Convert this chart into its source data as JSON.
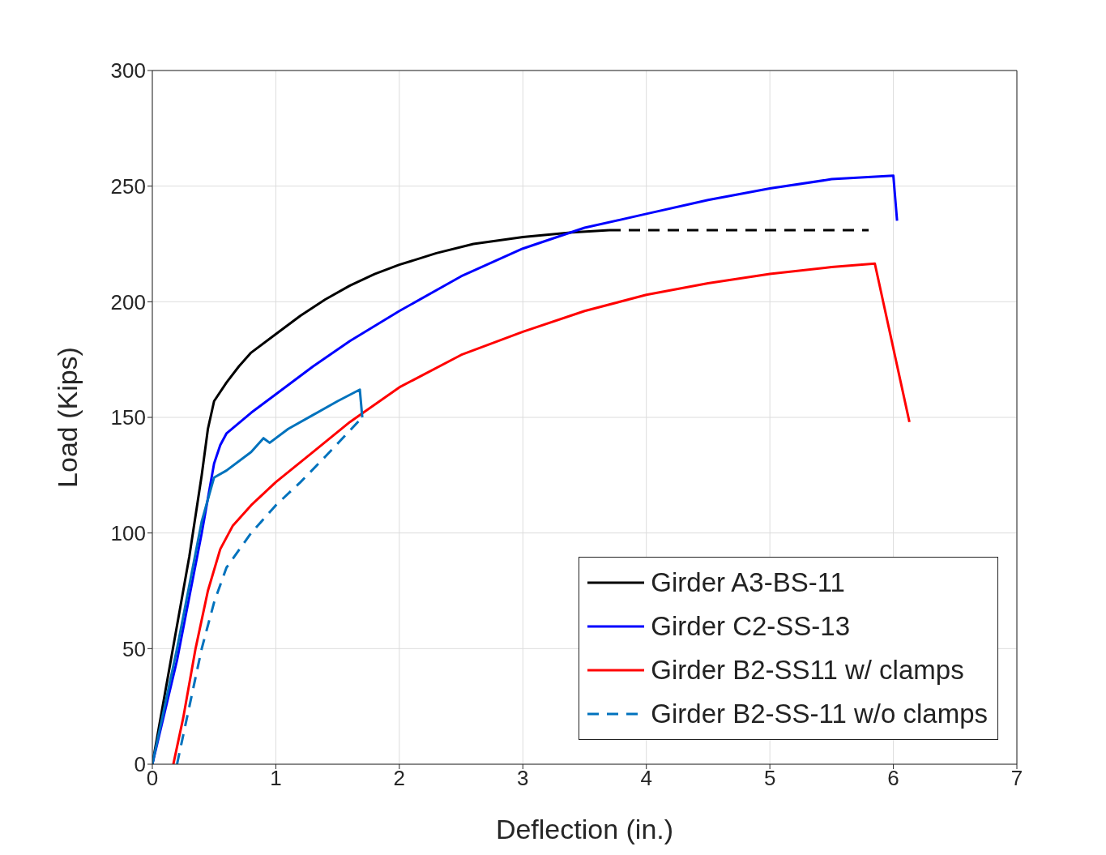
{
  "chart_data": {
    "type": "line",
    "xlabel": "Deflection (in.)",
    "ylabel": "Load (Kips)",
    "xlim": [
      0,
      7
    ],
    "xticks": [
      0,
      1,
      2,
      3,
      4,
      5,
      6,
      7
    ],
    "ylim": [
      0,
      300
    ],
    "yticks": [
      0,
      50,
      100,
      150,
      200,
      250,
      300
    ],
    "grid": true,
    "legend": "bottom right",
    "marker": "none",
    "series": [
      {
        "name": "Girder A3-BS-11",
        "color": "#000000",
        "line_style": "solid",
        "x": [
          0,
          0.1,
          0.2,
          0.3,
          0.4,
          0.45,
          0.5,
          0.6,
          0.7,
          0.8,
          1.0,
          1.2,
          1.4,
          1.6,
          1.8,
          2.0,
          2.3,
          2.6,
          3.0,
          3.4,
          3.7
        ],
        "values": [
          0,
          30,
          60,
          90,
          125,
          145,
          157,
          165,
          172,
          178,
          186,
          194,
          201,
          207,
          212,
          216,
          221,
          225,
          228,
          230,
          231
        ]
      },
      {
        "name": "Girder C2-SS-13",
        "color": "#0000ff",
        "line_style": "solid",
        "x": [
          0,
          0.2,
          0.4,
          0.5,
          0.55,
          0.6,
          0.8,
          1.0,
          1.3,
          1.6,
          2.0,
          2.5,
          3.0,
          3.5,
          4.0,
          4.5,
          5.0,
          5.5,
          6.0,
          6.03
        ],
        "values": [
          0,
          45,
          100,
          130,
          138,
          143,
          152,
          160,
          172,
          183,
          196,
          211,
          223,
          232,
          238,
          244,
          249,
          253,
          254.5,
          235
        ]
      },
      {
        "name": "Girder B2-SS11 w/ clamps",
        "color": "#ff0000",
        "line_style": "solid",
        "x": [
          0.17,
          0.25,
          0.35,
          0.45,
          0.55,
          0.65,
          0.8,
          1.0,
          1.3,
          1.6,
          2.0,
          2.5,
          3.0,
          3.5,
          4.0,
          4.5,
          5.0,
          5.5,
          5.85,
          6.13
        ],
        "values": [
          0,
          20,
          50,
          75,
          93,
          103,
          112,
          122,
          135,
          148,
          163,
          177,
          187,
          196,
          203,
          208,
          212,
          215,
          216.5,
          148
        ]
      },
      {
        "name": "Girder B2-SS-11 w/o clamps",
        "color": "#0072bd",
        "line_style": "dashed",
        "x": [
          0.2,
          0.3,
          0.4,
          0.5,
          0.6,
          0.8,
          1.0,
          1.2,
          1.4,
          1.7
        ],
        "values": [
          0,
          25,
          50,
          70,
          85,
          100,
          112,
          122,
          133,
          150
        ]
      },
      {
        "color": "#000000",
        "line_style": "dashed",
        "x": [
          3.7,
          5.8
        ],
        "values": [
          231,
          231
        ]
      },
      {
        "color": "#0072bd",
        "line_style": "solid",
        "x": [
          0,
          0.2,
          0.4,
          0.5,
          0.6,
          0.8,
          0.9,
          0.95,
          1.1,
          1.3,
          1.5,
          1.68,
          1.7
        ],
        "values": [
          0,
          50,
          105,
          124,
          127,
          135,
          141,
          139,
          145,
          151,
          157,
          162,
          150
        ]
      }
    ]
  }
}
